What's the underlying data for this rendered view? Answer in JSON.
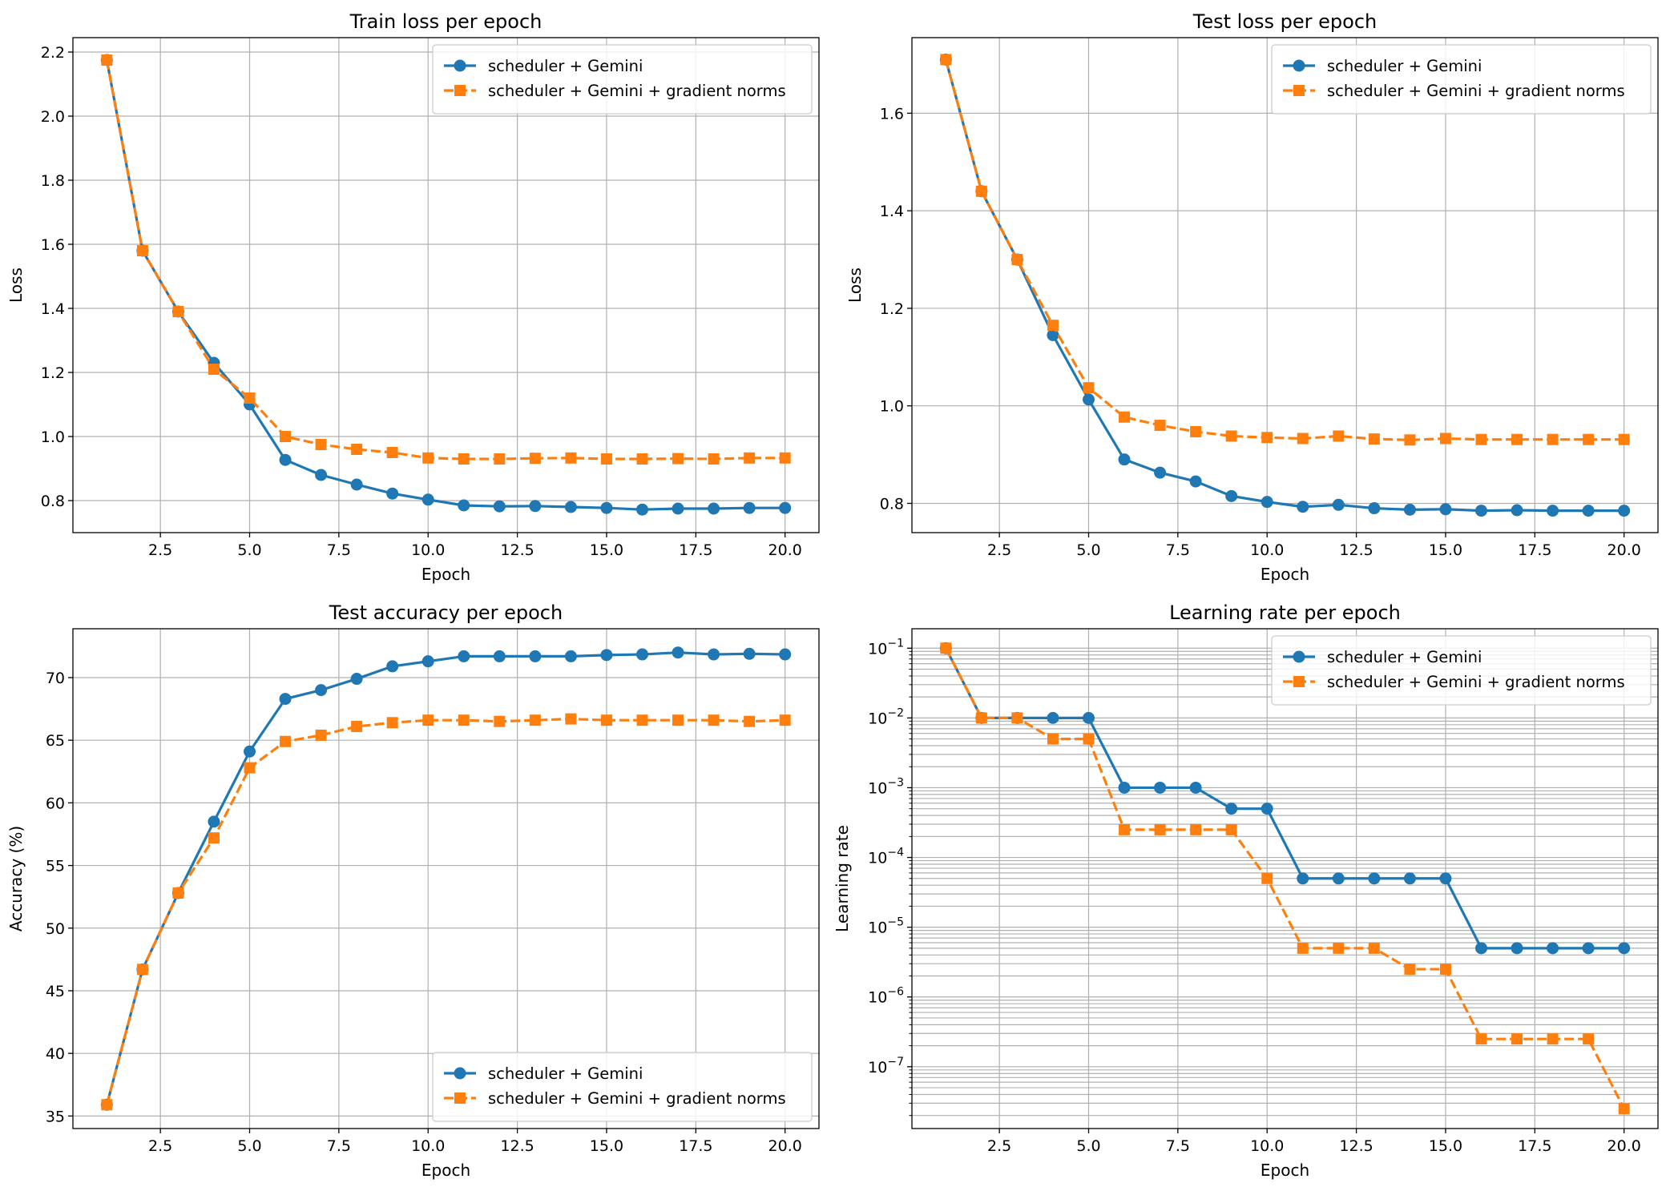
{
  "colors": {
    "blue": "#1f77b4",
    "orange": "#ff7f0e",
    "grid": "#b0b0b0"
  },
  "chart_data": [
    {
      "type": "line",
      "title": "Train loss per epoch",
      "xlabel": "Epoch",
      "ylabel": "Loss",
      "xlim": [
        0.05,
        20.95
      ],
      "ylim": [
        0.7,
        2.245
      ],
      "yscale": "linear",
      "xticks": [
        2.5,
        5.0,
        7.5,
        10.0,
        12.5,
        15.0,
        17.5,
        20.0
      ],
      "xtick_labels": [
        "2.5",
        "5.0",
        "7.5",
        "10.0",
        "12.5",
        "15.0",
        "17.5",
        "20.0"
      ],
      "yticks": [
        0.8,
        1.0,
        1.2,
        1.4,
        1.6,
        1.8,
        2.0,
        2.2
      ],
      "ytick_labels": [
        "0.8",
        "1.0",
        "1.2",
        "1.4",
        "1.6",
        "1.8",
        "2.0",
        "2.2"
      ],
      "grid": true,
      "legend": "top-right",
      "x": [
        1,
        2,
        3,
        4,
        5,
        6,
        7,
        8,
        9,
        10,
        11,
        12,
        13,
        14,
        15,
        16,
        17,
        18,
        19,
        20
      ],
      "series": [
        {
          "name": "scheduler + Gemini",
          "color": "#1f77b4",
          "marker": "circle",
          "linestyle": "solid",
          "values": [
            2.175,
            1.58,
            1.39,
            1.23,
            1.1,
            0.927,
            0.88,
            0.85,
            0.822,
            0.803,
            0.785,
            0.782,
            0.783,
            0.78,
            0.777,
            0.772,
            0.775,
            0.775,
            0.777,
            0.777
          ]
        },
        {
          "name": "scheduler + Gemini + gradient norms",
          "color": "#ff7f0e",
          "marker": "square",
          "linestyle": "dashed",
          "values": [
            2.175,
            1.58,
            1.39,
            1.21,
            1.12,
            1.0,
            0.975,
            0.96,
            0.95,
            0.933,
            0.93,
            0.93,
            0.932,
            0.933,
            0.93,
            0.93,
            0.931,
            0.93,
            0.933,
            0.933
          ]
        }
      ]
    },
    {
      "type": "line",
      "title": "Test loss per epoch",
      "xlabel": "Epoch",
      "ylabel": "Loss",
      "xlim": [
        0.05,
        20.95
      ],
      "ylim": [
        0.74,
        1.755
      ],
      "yscale": "linear",
      "xticks": [
        2.5,
        5.0,
        7.5,
        10.0,
        12.5,
        15.0,
        17.5,
        20.0
      ],
      "xtick_labels": [
        "2.5",
        "5.0",
        "7.5",
        "10.0",
        "12.5",
        "15.0",
        "17.5",
        "20.0"
      ],
      "yticks": [
        0.8,
        1.0,
        1.2,
        1.4,
        1.6
      ],
      "ytick_labels": [
        "0.8",
        "1.0",
        "1.2",
        "1.4",
        "1.6"
      ],
      "grid": true,
      "legend": "top-right",
      "x": [
        1,
        2,
        3,
        4,
        5,
        6,
        7,
        8,
        9,
        10,
        11,
        12,
        13,
        14,
        15,
        16,
        17,
        18,
        19,
        20
      ],
      "series": [
        {
          "name": "scheduler + Gemini",
          "color": "#1f77b4",
          "marker": "circle",
          "linestyle": "solid",
          "values": [
            1.71,
            1.44,
            1.3,
            1.145,
            1.013,
            0.89,
            0.863,
            0.845,
            0.815,
            0.803,
            0.793,
            0.797,
            0.79,
            0.787,
            0.788,
            0.785,
            0.786,
            0.785,
            0.785,
            0.785
          ]
        },
        {
          "name": "scheduler + Gemini + gradient norms",
          "color": "#ff7f0e",
          "marker": "square",
          "linestyle": "dashed",
          "values": [
            1.71,
            1.44,
            1.3,
            1.165,
            1.037,
            0.977,
            0.96,
            0.947,
            0.938,
            0.935,
            0.933,
            0.938,
            0.932,
            0.93,
            0.933,
            0.931,
            0.931,
            0.931,
            0.931,
            0.931
          ]
        }
      ]
    },
    {
      "type": "line",
      "title": "Test accuracy per epoch",
      "xlabel": "Epoch",
      "ylabel": "Accuracy (%)",
      "xlim": [
        0.05,
        20.95
      ],
      "ylim": [
        34.0,
        73.9
      ],
      "yscale": "linear",
      "xticks": [
        2.5,
        5.0,
        7.5,
        10.0,
        12.5,
        15.0,
        17.5,
        20.0
      ],
      "xtick_labels": [
        "2.5",
        "5.0",
        "7.5",
        "10.0",
        "12.5",
        "15.0",
        "17.5",
        "20.0"
      ],
      "yticks": [
        35,
        40,
        45,
        50,
        55,
        60,
        65,
        70
      ],
      "ytick_labels": [
        "35",
        "40",
        "45",
        "50",
        "55",
        "60",
        "65",
        "70"
      ],
      "grid": true,
      "legend": "bottom-right",
      "x": [
        1,
        2,
        3,
        4,
        5,
        6,
        7,
        8,
        9,
        10,
        11,
        12,
        13,
        14,
        15,
        16,
        17,
        18,
        19,
        20
      ],
      "series": [
        {
          "name": "scheduler + Gemini",
          "color": "#1f77b4",
          "marker": "circle",
          "linestyle": "solid",
          "values": [
            35.9,
            46.7,
            52.8,
            58.5,
            64.1,
            68.3,
            69.0,
            69.9,
            70.9,
            71.3,
            71.7,
            71.7,
            71.7,
            71.7,
            71.8,
            71.85,
            72.0,
            71.85,
            71.9,
            71.85
          ]
        },
        {
          "name": "scheduler + Gemini + gradient norms",
          "color": "#ff7f0e",
          "marker": "square",
          "linestyle": "dashed",
          "values": [
            35.9,
            46.7,
            52.8,
            57.2,
            62.8,
            64.9,
            65.4,
            66.1,
            66.4,
            66.6,
            66.6,
            66.5,
            66.6,
            66.7,
            66.6,
            66.6,
            66.6,
            66.6,
            66.5,
            66.6
          ]
        }
      ]
    },
    {
      "type": "line",
      "title": "Learning rate per epoch",
      "xlabel": "Epoch",
      "ylabel": "Learning rate",
      "xlim": [
        0.05,
        20.95
      ],
      "ylim": [
        1.3e-08,
        0.19
      ],
      "yscale": "log",
      "xticks": [
        2.5,
        5.0,
        7.5,
        10.0,
        12.5,
        15.0,
        17.5,
        20.0
      ],
      "xtick_labels": [
        "2.5",
        "5.0",
        "7.5",
        "10.0",
        "12.5",
        "15.0",
        "17.5",
        "20.0"
      ],
      "yticks": [
        1e-07,
        1e-06,
        1e-05,
        0.0001,
        0.001,
        0.01,
        0.1
      ],
      "ytick_bases": [
        "10",
        "10",
        "10",
        "10",
        "10",
        "10",
        "10"
      ],
      "ytick_exponents": [
        "−7",
        "−6",
        "−5",
        "−4",
        "−3",
        "−2",
        "−1"
      ],
      "grid": true,
      "legend": "top-right",
      "x": [
        1,
        2,
        3,
        4,
        5,
        6,
        7,
        8,
        9,
        10,
        11,
        12,
        13,
        14,
        15,
        16,
        17,
        18,
        19,
        20
      ],
      "series": [
        {
          "name": "scheduler + Gemini",
          "color": "#1f77b4",
          "marker": "circle",
          "linestyle": "solid",
          "values": [
            0.1,
            0.01,
            0.01,
            0.01,
            0.01,
            0.001,
            0.001,
            0.001,
            0.0005,
            0.0005,
            5e-05,
            5e-05,
            5e-05,
            5e-05,
            5e-05,
            5e-06,
            5e-06,
            5e-06,
            5e-06,
            5e-06
          ]
        },
        {
          "name": "scheduler + Gemini + gradient norms",
          "color": "#ff7f0e",
          "marker": "square",
          "linestyle": "dashed",
          "values": [
            0.1,
            0.01,
            0.01,
            0.005,
            0.005,
            0.00025,
            0.00025,
            0.00025,
            0.00025,
            5e-05,
            5e-06,
            5e-06,
            5e-06,
            2.5e-06,
            2.5e-06,
            2.5e-07,
            2.5e-07,
            2.5e-07,
            2.5e-07,
            2.5e-08
          ]
        }
      ]
    }
  ]
}
